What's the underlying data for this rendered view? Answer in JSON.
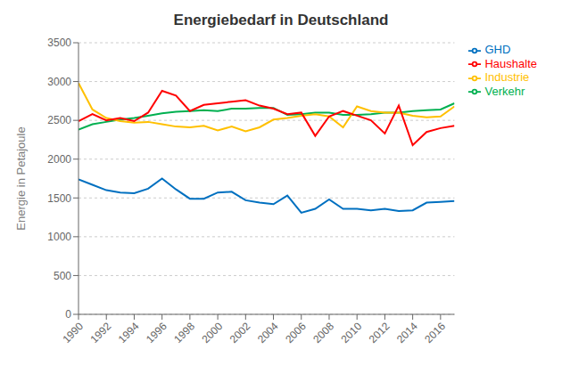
{
  "chart_data": {
    "type": "line",
    "title": "Energiebedarf in Deutschland",
    "ylabel": "Energie in Petajoule",
    "x": [
      1990,
      1991,
      1992,
      1993,
      1994,
      1995,
      1996,
      1997,
      1998,
      1999,
      2000,
      2001,
      2002,
      2003,
      2004,
      2005,
      2006,
      2007,
      2008,
      2009,
      2010,
      2011,
      2012,
      2013,
      2014,
      2015,
      2016,
      2017
    ],
    "series": [
      {
        "name": "Verkehr",
        "color": "#00b050",
        "values": [
          2380,
          2450,
          2480,
          2510,
          2530,
          2560,
          2590,
          2610,
          2620,
          2630,
          2620,
          2650,
          2650,
          2660,
          2660,
          2570,
          2580,
          2600,
          2600,
          2570,
          2570,
          2580,
          2600,
          2600,
          2620,
          2630,
          2640,
          2720
        ]
      },
      {
        "name": "Industrie",
        "color": "#ffc000",
        "values": [
          2980,
          2640,
          2530,
          2490,
          2470,
          2480,
          2450,
          2420,
          2410,
          2430,
          2370,
          2420,
          2360,
          2410,
          2510,
          2530,
          2560,
          2580,
          2550,
          2410,
          2680,
          2620,
          2600,
          2600,
          2560,
          2540,
          2550,
          2680
        ]
      },
      {
        "name": "Haushalte",
        "color": "#ff0000",
        "values": [
          2490,
          2580,
          2500,
          2530,
          2490,
          2600,
          2880,
          2820,
          2620,
          2700,
          2720,
          2740,
          2760,
          2690,
          2650,
          2580,
          2600,
          2300,
          2550,
          2620,
          2560,
          2500,
          2330,
          2690,
          2180,
          2350,
          2400,
          2430
        ]
      },
      {
        "name": "GHD",
        "color": "#0070c0",
        "values": [
          1740,
          1670,
          1600,
          1570,
          1560,
          1620,
          1750,
          1610,
          1490,
          1490,
          1570,
          1580,
          1470,
          1440,
          1420,
          1530,
          1310,
          1360,
          1480,
          1360,
          1360,
          1340,
          1360,
          1330,
          1340,
          1440,
          1450,
          1460
        ]
      }
    ],
    "xlim": [
      1990,
      2017
    ],
    "xticks": [
      1990,
      1992,
      1994,
      1996,
      1998,
      2000,
      2002,
      2004,
      2006,
      2008,
      2010,
      2012,
      2014,
      2016
    ],
    "ylim": [
      0,
      3500
    ],
    "yticks": [
      0,
      500,
      1000,
      1500,
      2000,
      2500,
      3000,
      3500
    ],
    "grid": true,
    "legend": "right"
  }
}
